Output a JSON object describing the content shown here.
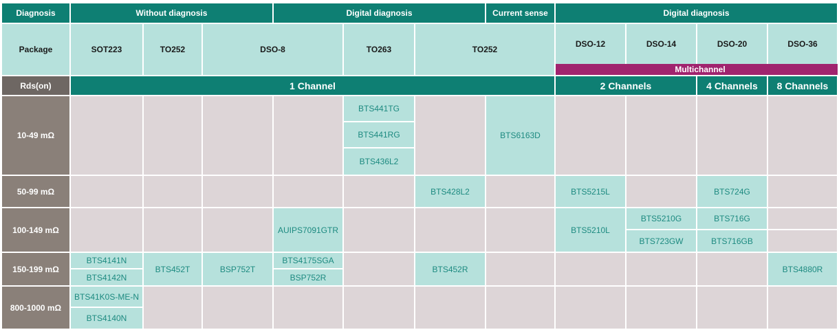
{
  "header_row": {
    "diagnosis": "Diagnosis",
    "without_diagnosis": "Without diagnosis",
    "digital_diagnosis_1": "Digital diagnosis",
    "current_sense": "Current sense",
    "digital_diagnosis_2": "Digital diagnosis"
  },
  "package_row": {
    "label": "Package",
    "sot223": "SOT223",
    "to252_a": "TO252",
    "dso8": "DSO-8",
    "to263": "TO263",
    "to252_b": "TO252",
    "dso12": "DSO-12",
    "dso14": "DSO-14",
    "dso20": "DSO-20",
    "dso36": "DSO-36"
  },
  "multichannel_label": "Multichannel",
  "channel_row": {
    "label": "Rds(on)",
    "one": "1 Channel",
    "two": "2 Channels",
    "four": "4 Channels",
    "eight": "8 Channels"
  },
  "row_labels": {
    "r1": "10-49 mΩ",
    "r2": "50-99 mΩ",
    "r3": "100-149 mΩ",
    "r4": "150-199 mΩ",
    "r5": "800-1000 mΩ"
  },
  "products": {
    "bts441tg": "BTS441TG",
    "bts441rg": "BTS441RG",
    "bts436l2": "BTS436L2",
    "bts6163d": "BTS6163D",
    "bts428l2": "BTS428L2",
    "bts5215l": "BTS5215L",
    "bts724g": "BTS724G",
    "auips7091gtr": "AUIPS7091GTR",
    "bts5210l": "BTS5210L",
    "bts5210g": "BTS5210G",
    "bts716g": "BTS716G",
    "bts723gw": "BTS723GW",
    "bts716gb": "BTS716GB",
    "bts4141n": "BTS4141N",
    "bts4142n": "BTS4142N",
    "bts452t": "BTS452T",
    "bsp752t": "BSP752T",
    "bts4175sga": "BTS4175SGA",
    "bsp752r": "BSP752R",
    "bts452r": "BTS452R",
    "bts4880r": "BTS4880R",
    "bts41k0s": "BTS41K0S-ME-N",
    "bts4140n": "BTS4140N"
  },
  "colors": {
    "teal": "#0e7f73",
    "light_teal": "#b6e1dc",
    "product_text": "#1d8a80",
    "empty_cell": "#ddd5d7",
    "row_label_gray": "#8a8079",
    "magenta": "#a0236e"
  }
}
